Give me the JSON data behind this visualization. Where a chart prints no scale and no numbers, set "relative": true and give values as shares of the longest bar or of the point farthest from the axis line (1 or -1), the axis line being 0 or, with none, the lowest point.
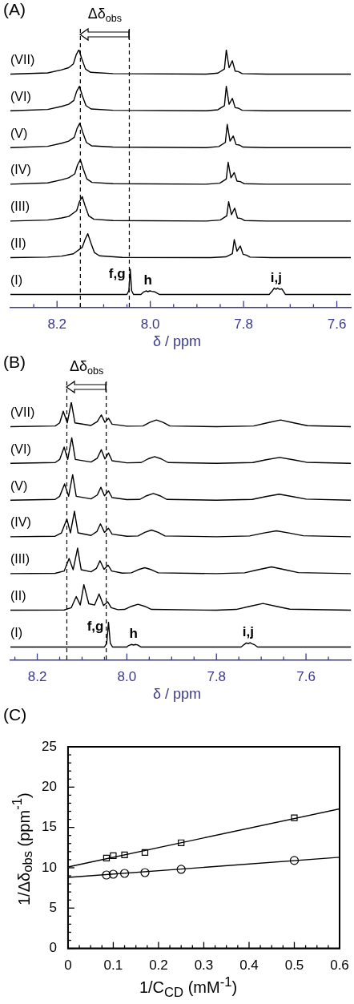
{
  "chart_data": [
    {
      "type": "line",
      "title": "(A)",
      "xlabel": "δ / ppm",
      "relative": true,
      "marker": "none",
      "xlim": [
        8.3,
        7.57
      ],
      "xticks": [
        {
          "value": 8.25,
          "label": null
        },
        8.2,
        {
          "value": 8.15,
          "label": null
        },
        {
          "value": 8.1,
          "label": null
        },
        {
          "value": 8.05,
          "label": null
        },
        {
          "value": 8,
          "label": "8.0"
        },
        {
          "value": 7.95,
          "label": null
        },
        {
          "value": 7.9,
          "label": null
        },
        {
          "value": 7.85,
          "label": null
        },
        7.8,
        {
          "value": 7.75,
          "label": null
        },
        {
          "value": 7.7,
          "label": null
        },
        {
          "value": 7.65,
          "label": null
        },
        7.6
      ],
      "ref_lines": [
        {
          "axis": "x",
          "value": 8.15,
          "line_style": "dashed"
        },
        {
          "axis": "x",
          "value": 8.045,
          "line_style": "dashed"
        }
      ],
      "annotations": [
        "Δδ$_{obs}$",
        {
          "text": "f,g",
          "x": 8.043,
          "y": 0.148
        },
        {
          "text": "h",
          "x": 8.005,
          "y": 0.061
        },
        {
          "text": "i,j",
          "x": 7.73,
          "y": 0.07
        }
      ],
      "series": [
        {
          "name": "(VII)",
          "color": "#000000",
          "x": [
            8.3,
            8.22,
            8.19,
            8.175,
            8.165,
            8.159,
            8.153,
            8.147,
            8.139,
            8.128,
            8.08,
            7.88,
            7.855,
            7.841,
            7.837,
            7.831,
            7.824,
            7.818,
            7.811,
            7.803,
            7.75,
            7.57
          ],
          "values": [
            0.905,
            0.91,
            0.922,
            0.93,
            0.945,
            0.98,
            1,
            0.965,
            0.925,
            0.912,
            0.907,
            0.905,
            0.909,
            0.925,
            0.999,
            0.93,
            0.957,
            0.917,
            0.915,
            0.907,
            0.905,
            0.905
          ]
        },
        {
          "name": "(VI)",
          "color": "#000000",
          "x": [
            8.3,
            8.22,
            8.19,
            8.175,
            8.164,
            8.158,
            8.152,
            8.146,
            8.138,
            8.127,
            8.08,
            7.88,
            7.855,
            7.841,
            7.837,
            7.831,
            7.824,
            7.818,
            7.811,
            7.803,
            7.75,
            7.57
          ],
          "values": [
            0.763,
            0.768,
            0.78,
            0.788,
            0.803,
            0.838,
            0.858,
            0.823,
            0.783,
            0.77,
            0.765,
            0.763,
            0.767,
            0.783,
            0.858,
            0.788,
            0.811,
            0.775,
            0.773,
            0.765,
            0.763,
            0.763
          ]
        },
        {
          "name": "(V)",
          "color": "#000000",
          "x": [
            8.3,
            8.22,
            8.19,
            8.175,
            8.163,
            8.157,
            8.151,
            8.145,
            8.137,
            8.126,
            8.08,
            7.88,
            7.853,
            7.839,
            7.835,
            7.829,
            7.822,
            7.816,
            7.809,
            7.801,
            7.75,
            7.57
          ],
          "values": [
            0.62,
            0.625,
            0.637,
            0.645,
            0.66,
            0.695,
            0.715,
            0.68,
            0.64,
            0.627,
            0.622,
            0.62,
            0.624,
            0.64,
            0.71,
            0.645,
            0.665,
            0.632,
            0.63,
            0.622,
            0.62,
            0.62
          ]
        },
        {
          "name": "(IV)",
          "color": "#000000",
          "x": [
            8.3,
            8.22,
            8.19,
            8.175,
            8.162,
            8.156,
            8.15,
            8.144,
            8.136,
            8.125,
            8.08,
            7.88,
            7.851,
            7.837,
            7.833,
            7.827,
            7.82,
            7.814,
            7.807,
            7.799,
            7.75,
            7.57
          ],
          "values": [
            0.478,
            0.483,
            0.495,
            0.503,
            0.518,
            0.553,
            0.573,
            0.538,
            0.498,
            0.485,
            0.48,
            0.478,
            0.482,
            0.498,
            0.563,
            0.503,
            0.523,
            0.49,
            0.488,
            0.48,
            0.478,
            0.478
          ]
        },
        {
          "name": "(III)",
          "color": "#000000",
          "x": [
            8.3,
            8.22,
            8.19,
            8.175,
            8.158,
            8.152,
            8.146,
            8.14,
            8.132,
            8.121,
            8.08,
            7.88,
            7.85,
            7.836,
            7.832,
            7.826,
            7.819,
            7.813,
            7.806,
            7.798,
            7.75,
            7.57
          ],
          "values": [
            0.335,
            0.339,
            0.347,
            0.353,
            0.375,
            0.41,
            0.43,
            0.395,
            0.355,
            0.342,
            0.337,
            0.335,
            0.339,
            0.355,
            0.41,
            0.36,
            0.385,
            0.347,
            0.345,
            0.337,
            0.335,
            0.335
          ]
        },
        {
          "name": "(II)",
          "color": "#000000",
          "x": [
            8.3,
            8.22,
            8.19,
            8.165,
            8.146,
            8.14,
            8.134,
            8.128,
            8.12,
            8.109,
            8.06,
            7.87,
            7.838,
            7.824,
            7.82,
            7.814,
            7.807,
            7.801,
            7.794,
            7.786,
            7.74,
            7.57
          ],
          "values": [
            0.193,
            0.195,
            0.199,
            0.208,
            0.233,
            0.263,
            0.286,
            0.253,
            0.213,
            0.2,
            0.194,
            0.193,
            0.196,
            0.208,
            0.263,
            0.218,
            0.238,
            0.206,
            0.203,
            0.195,
            0.193,
            0.193
          ]
        },
        {
          "name": "(I)",
          "color": "#000000",
          "x": [
            8.3,
            8.05,
            8.046,
            8.043,
            8.04,
            8.036,
            8.02,
            8.014,
            8.009,
            8.005,
            8.001,
            7.997,
            7.99,
            7.98,
            7.745,
            7.738,
            7.734,
            7.73,
            7.727,
            7.723,
            7.718,
            7.71,
            7.57
          ],
          "values": [
            0.05,
            0.05,
            0.065,
            0.148,
            0.065,
            0.05,
            0.05,
            0.06,
            0.064,
            0.061,
            0.064,
            0.062,
            0.06,
            0.05,
            0.05,
            0.065,
            0.075,
            0.07,
            0.075,
            0.07,
            0.072,
            0.05,
            0.05
          ]
        }
      ]
    },
    {
      "type": "line",
      "title": "(B)",
      "xlabel": "δ / ppm",
      "relative": true,
      "marker": "none",
      "xlim": [
        8.26,
        7.5
      ],
      "xticks": [
        {
          "value": 8.25,
          "label": null
        },
        8.2,
        {
          "value": 8.15,
          "label": null
        },
        {
          "value": 8.1,
          "label": null
        },
        {
          "value": 8.05,
          "label": null
        },
        {
          "value": 8,
          "label": "8.0"
        },
        {
          "value": 7.95,
          "label": null
        },
        {
          "value": 7.9,
          "label": null
        },
        {
          "value": 7.85,
          "label": null
        },
        7.8,
        {
          "value": 7.75,
          "label": null
        },
        {
          "value": 7.7,
          "label": null
        },
        {
          "value": 7.65,
          "label": null
        },
        7.6,
        {
          "value": 7.55,
          "label": null
        }
      ],
      "ref_lines": [
        {
          "axis": "x",
          "value": 8.134,
          "line_style": "dashed"
        },
        {
          "axis": "x",
          "value": 8.046,
          "line_style": "dashed"
        }
      ],
      "annotations": [
        "Δδ$_{obs}$",
        {
          "text": "f,g",
          "x": 8.041,
          "y": 0.146
        },
        {
          "text": "h",
          "x": 7.985,
          "y": 0.058
        },
        {
          "text": "i,j",
          "x": 7.729,
          "y": 0.063
        }
      ],
      "series": [
        {
          "name": "(VII)",
          "color": "#000000",
          "x": [
            8.26,
            8.16,
            8.15,
            8.142,
            8.133,
            8.124,
            8.116,
            8.08,
            8.066,
            8.057,
            8.049,
            8.041,
            8.033,
            8,
            7.964,
            7.949,
            7.934,
            7.919,
            7.904,
            7.8,
            7.717,
            7.687,
            7.657,
            7.627,
            7.597,
            7.5
          ],
          "values": [
            0.905,
            0.908,
            0.92,
            0.965,
            0.92,
            1,
            0.92,
            0.91,
            0.925,
            0.951,
            0.922,
            0.938,
            0.915,
            0.907,
            0.908,
            0.922,
            0.931,
            0.922,
            0.908,
            0.905,
            0.908,
            0.92,
            0.931,
            0.92,
            0.909,
            0.905
          ]
        },
        {
          "name": "(VI)",
          "color": "#000000",
          "x": [
            8.26,
            8.16,
            8.15,
            8.14,
            8.132,
            8.123,
            8.115,
            8.08,
            8.066,
            8.057,
            8.049,
            8.041,
            8.033,
            8,
            7.968,
            7.953,
            7.938,
            7.923,
            7.908,
            7.8,
            7.719,
            7.689,
            7.659,
            7.629,
            7.599,
            7.5
          ],
          "values": [
            0.763,
            0.766,
            0.778,
            0.826,
            0.778,
            0.862,
            0.778,
            0.768,
            0.783,
            0.816,
            0.78,
            0.803,
            0.773,
            0.765,
            0.766,
            0.78,
            0.789,
            0.78,
            0.766,
            0.763,
            0.766,
            0.777,
            0.786,
            0.777,
            0.767,
            0.763
          ]
        },
        {
          "name": "(V)",
          "color": "#000000",
          "x": [
            8.26,
            8.16,
            8.15,
            8.139,
            8.13,
            8.121,
            8.113,
            8.08,
            8.066,
            8.058,
            8.05,
            8.041,
            8.033,
            8,
            7.971,
            7.956,
            7.941,
            7.926,
            7.911,
            7.8,
            7.72,
            7.69,
            7.66,
            7.63,
            7.6,
            7.5
          ],
          "values": [
            0.62,
            0.623,
            0.635,
            0.683,
            0.635,
            0.719,
            0.635,
            0.625,
            0.64,
            0.67,
            0.637,
            0.656,
            0.63,
            0.622,
            0.623,
            0.637,
            0.646,
            0.637,
            0.623,
            0.62,
            0.623,
            0.634,
            0.643,
            0.634,
            0.624,
            0.62
          ]
        },
        {
          "name": "(IV)",
          "color": "#000000",
          "x": [
            8.26,
            8.16,
            8.146,
            8.134,
            8.126,
            8.117,
            8.109,
            8.08,
            8.067,
            8.059,
            8.05,
            8.041,
            8.033,
            8,
            7.975,
            7.96,
            7.945,
            7.93,
            7.915,
            7.8,
            7.726,
            7.696,
            7.666,
            7.636,
            7.606,
            7.5
          ],
          "values": [
            0.478,
            0.48,
            0.493,
            0.547,
            0.493,
            0.577,
            0.493,
            0.483,
            0.498,
            0.528,
            0.495,
            0.511,
            0.488,
            0.48,
            0.481,
            0.495,
            0.504,
            0.495,
            0.481,
            0.478,
            0.481,
            0.492,
            0.501,
            0.492,
            0.482,
            0.478
          ]
        },
        {
          "name": "(III)",
          "color": "#000000",
          "x": [
            8.26,
            8.16,
            8.14,
            8.129,
            8.12,
            8.11,
            8.102,
            8.08,
            8.068,
            8.06,
            8.051,
            8.042,
            8.034,
            8.01,
            7.99,
            7.975,
            7.96,
            7.945,
            7.93,
            7.8,
            7.737,
            7.707,
            7.677,
            7.647,
            7.617,
            7.5
          ],
          "values": [
            0.335,
            0.336,
            0.345,
            0.394,
            0.35,
            0.434,
            0.35,
            0.342,
            0.355,
            0.385,
            0.352,
            0.368,
            0.345,
            0.337,
            0.338,
            0.35,
            0.358,
            0.35,
            0.338,
            0.335,
            0.338,
            0.35,
            0.361,
            0.35,
            0.339,
            0.335
          ]
        },
        {
          "name": "(II)",
          "color": "#000000",
          "x": [
            8.26,
            8.14,
            8.124,
            8.113,
            8.104,
            8.096,
            8.085,
            8.072,
            8.062,
            8.052,
            8.043,
            8.035,
            8.02,
            8.005,
            7.99,
            7.975,
            7.96,
            7.945,
            7.8,
            7.756,
            7.726,
            7.696,
            7.666,
            7.636,
            7.5
          ],
          "values": [
            0.193,
            0.194,
            0.203,
            0.246,
            0.213,
            0.292,
            0.218,
            0.213,
            0.256,
            0.211,
            0.226,
            0.203,
            0.195,
            0.196,
            0.208,
            0.216,
            0.208,
            0.196,
            0.193,
            0.196,
            0.208,
            0.219,
            0.208,
            0.197,
            0.193
          ]
        },
        {
          "name": "(I)",
          "color": "#000000",
          "x": [
            8.26,
            8.05,
            8.045,
            8.041,
            8.037,
            8.032,
            8,
            7.996,
            7.99,
            7.985,
            7.98,
            7.976,
            7.968,
            7.745,
            7.738,
            7.733,
            7.729,
            7.725,
            7.721,
            7.716,
            7.708,
            7.5
          ],
          "values": [
            0.05,
            0.05,
            0.065,
            0.146,
            0.065,
            0.05,
            0.05,
            0.056,
            0.06,
            0.058,
            0.06,
            0.058,
            0.05,
            0.05,
            0.06,
            0.066,
            0.063,
            0.067,
            0.063,
            0.06,
            0.05,
            0.05
          ]
        }
      ]
    },
    {
      "type": "scatter",
      "title": "(C)",
      "xlabel": "1/C$_{CD}$ (mM$^{-1}$)",
      "ylabel": "1/Δδ$_{obs}$ (ppm$^{-1}$)",
      "xlim": [
        0,
        0.6
      ],
      "ylim": [
        0,
        25
      ],
      "xticks": [
        0,
        {
          "value": 0.025,
          "label": null
        },
        {
          "value": 0.05,
          "label": null
        },
        {
          "value": 0.075,
          "label": null
        },
        0.1,
        {
          "value": 0.125,
          "label": null
        },
        {
          "value": 0.15,
          "label": null
        },
        {
          "value": 0.175,
          "label": null
        },
        0.2,
        {
          "value": 0.225,
          "label": null
        },
        {
          "value": 0.25,
          "label": null
        },
        {
          "value": 0.275,
          "label": null
        },
        0.3,
        {
          "value": 0.325,
          "label": null
        },
        {
          "value": 0.35,
          "label": null
        },
        {
          "value": 0.375,
          "label": null
        },
        0.4,
        {
          "value": 0.425,
          "label": null
        },
        {
          "value": 0.45,
          "label": null
        },
        {
          "value": 0.475,
          "label": null
        },
        0.5,
        {
          "value": 0.525,
          "label": null
        },
        {
          "value": 0.55,
          "label": null
        },
        {
          "value": 0.575,
          "label": null
        },
        0.6
      ],
      "yticks": [
        0,
        {
          "value": 1,
          "label": null
        },
        {
          "value": 2,
          "label": null
        },
        {
          "value": 3,
          "label": null
        },
        {
          "value": 4,
          "label": null
        },
        5,
        {
          "value": 6,
          "label": null
        },
        {
          "value": 7,
          "label": null
        },
        {
          "value": 8,
          "label": null
        },
        {
          "value": 9,
          "label": null
        },
        10,
        {
          "value": 11,
          "label": null
        },
        {
          "value": 12,
          "label": null
        },
        {
          "value": 13,
          "label": null
        },
        {
          "value": 14,
          "label": null
        },
        15,
        {
          "value": 16,
          "label": null
        },
        {
          "value": 17,
          "label": null
        },
        {
          "value": 18,
          "label": null
        },
        {
          "value": 19,
          "label": null
        },
        20,
        {
          "value": 21,
          "label": null
        },
        {
          "value": 22,
          "label": null
        },
        {
          "value": 23,
          "label": null
        },
        {
          "value": 24,
          "label": null
        },
        25
      ],
      "series": [
        {
          "type": "scatter",
          "marker": "square",
          "color": "#000000",
          "x": [
            0.085,
            0.1,
            0.125,
            0.17,
            0.25,
            0.5
          ],
          "values": [
            11.2,
            11.5,
            11.6,
            11.9,
            13.1,
            16.2
          ]
        },
        {
          "type": "scatter",
          "marker": "circle",
          "color": "#000000",
          "x": [
            0.085,
            0.1,
            0.125,
            0.17,
            0.25,
            0.5
          ],
          "values": [
            9.1,
            9.2,
            9.3,
            9.4,
            9.8,
            10.9
          ]
        },
        {
          "type": "line",
          "marker": "none",
          "color": "#000000",
          "x": [
            0,
            0.6
          ],
          "values": [
            10.1,
            17.3
          ]
        },
        {
          "type": "line",
          "marker": "none",
          "color": "#000000",
          "x": [
            0,
            0.6
          ],
          "values": [
            8.8,
            11.3
          ]
        }
      ]
    }
  ]
}
